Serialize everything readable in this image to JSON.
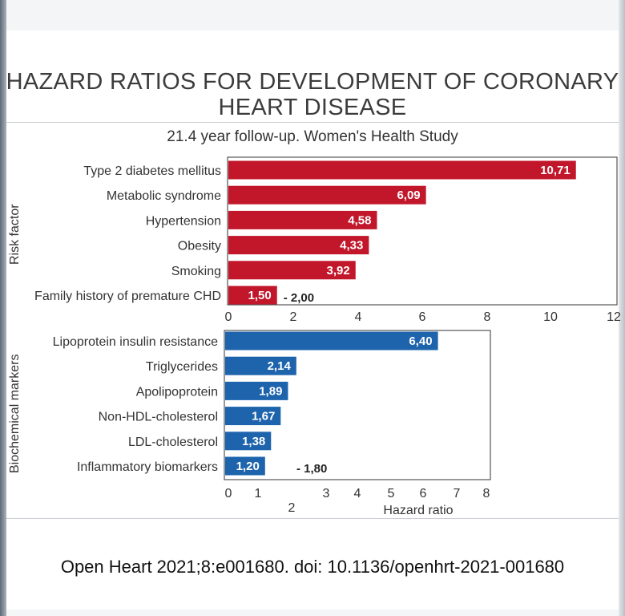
{
  "title": "HAZARD RATIOS FOR DEVELOPMENT OF CORONARY HEART DISEASE",
  "title_lines": [
    "HAZARD RATIOS FOR DEVELOPMENT OF CORONARY",
    "HEART DISEASE"
  ],
  "subtitle": "21.4 year follow-up. Women's Health Study",
  "citation": "Open Heart 2021;8:e001680. doi: 10.1136/openhrt-2021-001680",
  "colors": {
    "risk_bar": "#c2172b",
    "marker_bar": "#1e64ad"
  },
  "chart_data": [
    {
      "type": "bar",
      "orientation": "horizontal",
      "ylabel": "Risk factor",
      "xlim": [
        0,
        12
      ],
      "xticks": [
        "0",
        "2",
        "4",
        "6",
        "8",
        "10",
        "12"
      ],
      "categories": [
        "Type 2 diabetes mellitus",
        "Metabolic syndrome",
        "Hypertension",
        "Obesity",
        "Smoking",
        "Family history of premature CHD"
      ],
      "values": [
        10.71,
        6.09,
        4.58,
        4.33,
        3.92,
        1.5
      ],
      "value_labels": [
        "10,71",
        "6,09",
        "4,58",
        "4,33",
        "3,92",
        "1,50"
      ],
      "annotation": {
        "category": "Family history of premature CHD",
        "text": "- 2,00"
      }
    },
    {
      "type": "bar",
      "orientation": "horizontal",
      "ylabel": "Biochemical markers",
      "xlabel": "Hazard ratio",
      "xlim": [
        0,
        8
      ],
      "xticks": [
        "0",
        "1",
        "2",
        "3",
        "4",
        "5",
        "6",
        "7",
        "8"
      ],
      "categories": [
        "Lipoprotein insulin resistance",
        "Triglycerides",
        "Apolipoprotein",
        "Non-HDL-cholesterol",
        "LDL-cholesterol",
        "Inflammatory biomarkers"
      ],
      "values": [
        6.4,
        2.14,
        1.89,
        1.67,
        1.38,
        1.2
      ],
      "value_labels": [
        "6,40",
        "2,14",
        "1,89",
        "1,67",
        "1,38",
        "1,20"
      ],
      "annotation": {
        "category": "Inflammatory biomarkers",
        "text": "- 1,80"
      }
    }
  ]
}
